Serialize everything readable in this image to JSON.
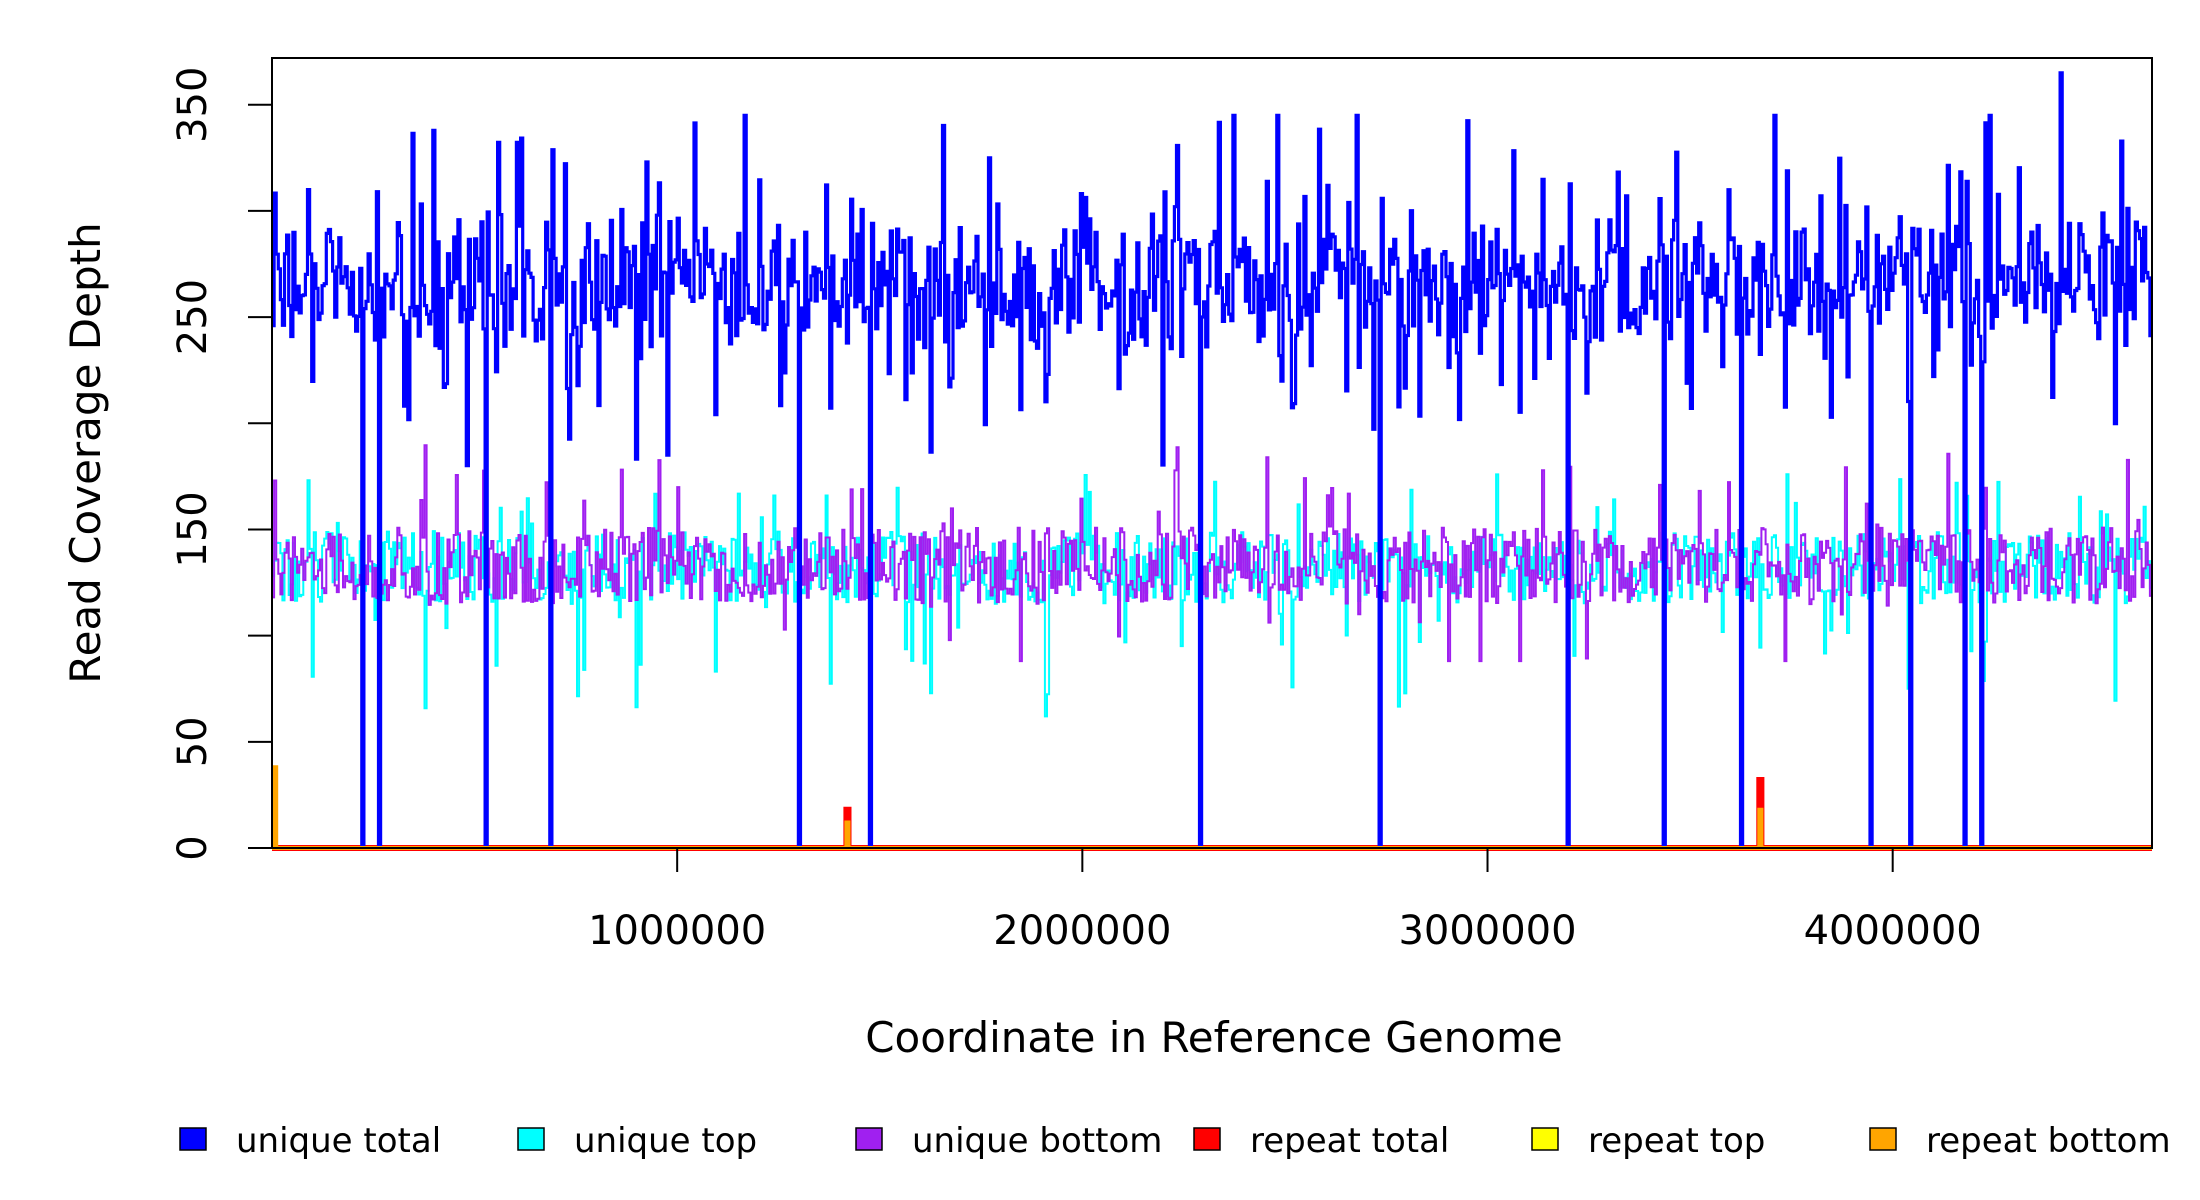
{
  "chart_data": {
    "type": "line",
    "xlabel": "Coordinate in Reference Genome",
    "ylabel": "Read Coverage Depth",
    "xlim": [
      0,
      4640000
    ],
    "ylim": [
      0,
      372
    ],
    "x_ticks": [
      1000000,
      2000000,
      3000000,
      4000000
    ],
    "x_tick_labels": [
      "1000000",
      "2000000",
      "3000000",
      "4000000"
    ],
    "y_ticks": [
      0,
      50,
      100,
      150,
      200,
      250,
      300,
      350
    ],
    "y_tick_labels": [
      "0",
      "50",
      "",
      "150",
      "",
      "250",
      "",
      "350"
    ],
    "legend": [
      {
        "label": "unique total",
        "color": "#0000FF"
      },
      {
        "label": "unique top",
        "color": "#00FFFF"
      },
      {
        "label": "unique bottom",
        "color": "#A020F0"
      },
      {
        "label": "repeat total",
        "color": "#FF0000"
      },
      {
        "label": "repeat top",
        "color": "#FFFF00"
      },
      {
        "label": "repeat bottom",
        "color": "#FFA500"
      }
    ],
    "legend_placement": "bottom",
    "series": [
      {
        "name": "unique total",
        "color": "#0000FF",
        "typical_range": [
          200,
          340
        ],
        "approx_mean": 265,
        "peak": 365
      },
      {
        "name": "unique top",
        "color": "#00FFFF",
        "typical_range": [
          80,
          175
        ],
        "approx_mean": 132
      },
      {
        "name": "unique bottom",
        "color": "#A020F0",
        "typical_range": [
          90,
          190
        ],
        "approx_mean": 133
      },
      {
        "name": "repeat total",
        "color": "#FF0000",
        "baseline": 0,
        "spikes": [
          [
            1420000,
            18
          ],
          [
            3670000,
            32
          ]
        ]
      },
      {
        "name": "repeat top",
        "color": "#FFFF00",
        "baseline": 0
      },
      {
        "name": "repeat bottom",
        "color": "#FFA500",
        "baseline": 0,
        "spikes": [
          [
            5000,
            38
          ],
          [
            1420000,
            12
          ],
          [
            3670000,
            18
          ]
        ]
      }
    ],
    "coverage_dropouts": [
      220000,
      265000,
      525000,
      685000,
      1300000,
      1475000,
      2290000,
      2735000,
      3195000,
      3435000,
      3625000,
      3945000,
      4040000,
      4175000,
      4215000
    ]
  }
}
